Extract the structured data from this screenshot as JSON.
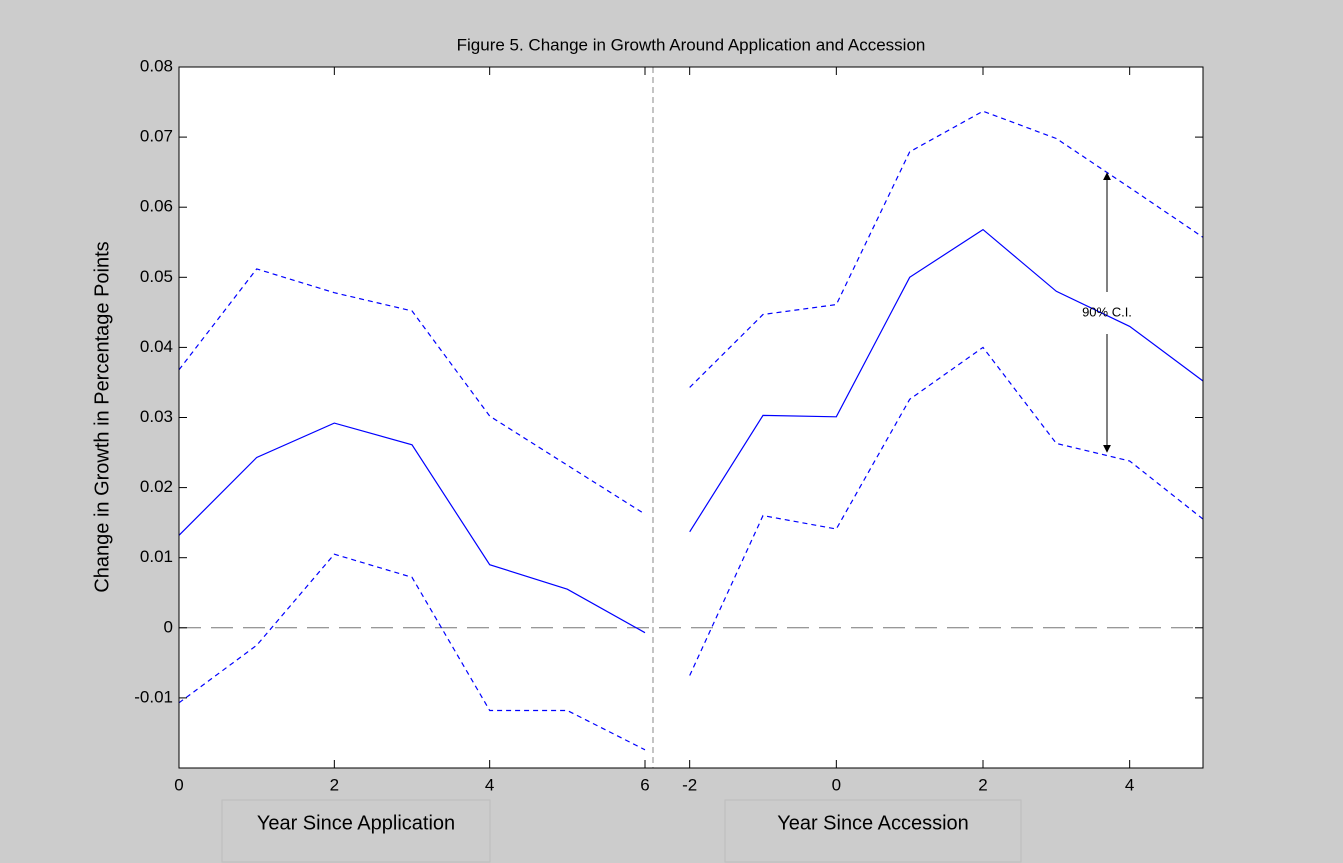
{
  "chart_data": {
    "type": "line",
    "title": "Figure 5. Change in Growth Around Application and Accession",
    "y_label": "Change in Growth in Percentage Points",
    "annotation": "90% C.I.",
    "ylim": [
      -0.02,
      0.08
    ],
    "yticks": [
      -0.01,
      0,
      0.01,
      0.02,
      0.03,
      0.04,
      0.05,
      0.06,
      0.07,
      0.08
    ],
    "zero_line": true,
    "panels": [
      {
        "x_label": "Year Since Application",
        "x": [
          0,
          1,
          2,
          3,
          4,
          5,
          6
        ],
        "xlim": [
          0,
          6.1
        ],
        "xticks": [
          0,
          2,
          4,
          6
        ],
        "series": [
          {
            "color": "#0000ff",
            "style": "solid",
            "values": [
              0.0132,
              0.0243,
              0.0292,
              0.0261,
              0.009,
              0.0055,
              -0.0007
            ]
          },
          {
            "color": "#0000ff",
            "style": "dashed",
            "values": [
              0.0368,
              0.0512,
              0.0478,
              0.0452,
              0.0302,
              0.0232,
              0.0162
            ]
          },
          {
            "color": "#0000ff",
            "style": "dashed",
            "values": [
              -0.0107,
              -0.0025,
              0.0105,
              0.0072,
              -0.0118,
              -0.0118,
              -0.0174
            ]
          }
        ]
      },
      {
        "x_label": "Year Since Accession",
        "x": [
          -2,
          -1,
          0,
          1,
          2,
          3,
          4,
          5
        ],
        "xlim": [
          -2.5,
          5
        ],
        "xticks": [
          -2,
          0,
          2,
          4
        ],
        "series": [
          {
            "color": "#0000ff",
            "style": "solid",
            "values": [
              0.0137,
              0.0303,
              0.0301,
              0.05,
              0.0568,
              0.048,
              0.043,
              0.0352
            ]
          },
          {
            "color": "#0000ff",
            "style": "dashed",
            "values": [
              0.0343,
              0.0447,
              0.0461,
              0.0679,
              0.0737,
              0.0698,
              0.0628,
              0.0557
            ]
          },
          {
            "color": "#0000ff",
            "style": "dashed",
            "values": [
              -0.0068,
              0.016,
              0.0141,
              0.0326,
              0.04,
              0.0263,
              0.0238,
              0.0155
            ]
          }
        ]
      }
    ]
  }
}
